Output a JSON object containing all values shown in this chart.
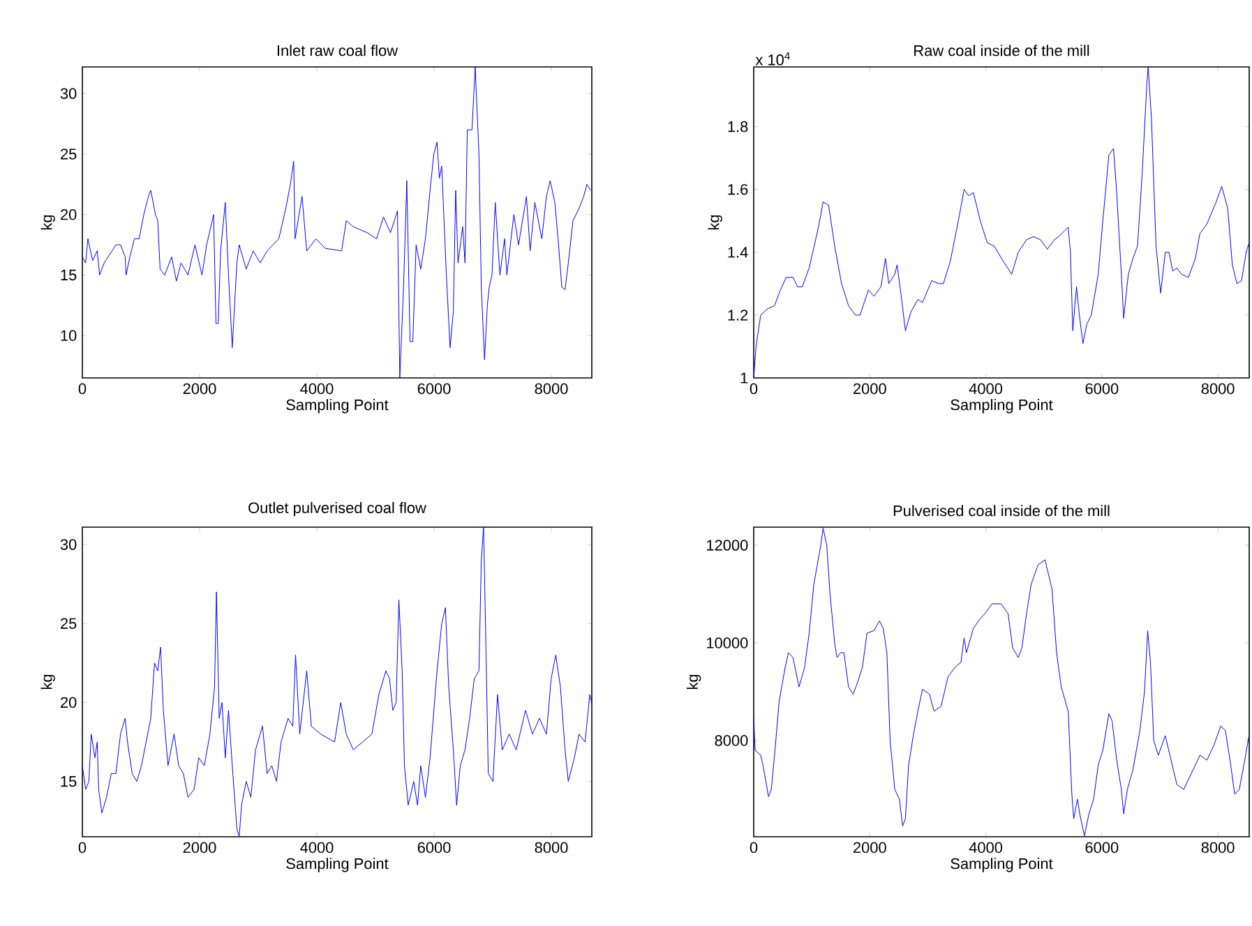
{
  "chart_data": [
    {
      "type": "line",
      "title": "Inlet raw coal flow",
      "xlabel": "Sampling Point",
      "ylabel": "kg",
      "color": "#0000ff",
      "marker": "none",
      "line_style": "solid",
      "xlim": [
        0,
        8690
      ],
      "ylim": [
        6.5,
        32.2
      ],
      "xticks": [
        0,
        2000,
        4000,
        6000,
        8000
      ],
      "yticks": [
        10,
        15,
        20,
        25,
        30
      ],
      "x": [
        0,
        56,
        95,
        175,
        254,
        294,
        373,
        572,
        651,
        730,
        746,
        810,
        889,
        969,
        1048,
        1127,
        1167,
        1247,
        1286,
        1326,
        1405,
        1524,
        1604,
        1683,
        1802,
        1921,
        2041,
        2120,
        2239,
        2279,
        2318,
        2358,
        2438,
        2493,
        2557,
        2636,
        2676,
        2795,
        2914,
        3033,
        3152,
        3351,
        3470,
        3549,
        3605,
        3629,
        3748,
        3827,
        3986,
        4145,
        4423,
        4502,
        4621,
        4859,
        5018,
        5137,
        5256,
        5375,
        5415,
        5479,
        5534,
        5590,
        5637,
        5693,
        5772,
        5852,
        5931,
        5995,
        6050,
        6090,
        6130,
        6209,
        6273,
        6328,
        6368,
        6408,
        6487,
        6527,
        6566,
        6646,
        6701,
        6765,
        6805,
        6860,
        6908,
        6940,
        6987,
        7043,
        7122,
        7202,
        7241,
        7360,
        7440,
        7575,
        7638,
        7718,
        7837,
        7916,
        7980,
        8059,
        8115,
        8178,
        8234,
        8289,
        8369,
        8472,
        8551,
        8607,
        8670
      ],
      "values": [
        16.5,
        16,
        18,
        16.2,
        17,
        15,
        16,
        17.5,
        17.5,
        16.5,
        15,
        16.5,
        18,
        18,
        20,
        21.5,
        22,
        20,
        19.5,
        15.5,
        15,
        16.5,
        14.5,
        16,
        15,
        17.5,
        15,
        17.5,
        20,
        11,
        11,
        17,
        21,
        15,
        9,
        16,
        17.5,
        15.5,
        17,
        16,
        17,
        18,
        20.5,
        22.5,
        24.4,
        18,
        21.5,
        17,
        18,
        17.2,
        17,
        19.5,
        19,
        18.5,
        18,
        19.8,
        18.5,
        20.3,
        6.5,
        14,
        22.8,
        9.5,
        9.5,
        17.5,
        15.5,
        18,
        22,
        25,
        26,
        23,
        24,
        15,
        9,
        12,
        22,
        16,
        19,
        16,
        27,
        27,
        32.2,
        25,
        14,
        8,
        12.5,
        14,
        15,
        21,
        15,
        18,
        15,
        20,
        17.5,
        21.5,
        17,
        21,
        18,
        21.5,
        22.8,
        21,
        18,
        14,
        13.8,
        16,
        19.5,
        20.5,
        21.5,
        22.5,
        22
      ]
    },
    {
      "type": "line",
      "title": "Raw coal inside of the mill",
      "xlabel": "Sampling Point",
      "ylabel": "kg",
      "annotations": [
        "x 10$^{4}$"
      ],
      "color": "#0000ff",
      "marker": "none",
      "line_style": "solid",
      "xlim": [
        0,
        8540
      ],
      "ylim": [
        1.0,
        1.99
      ],
      "xticks": [
        0,
        2000,
        4000,
        6000,
        8000
      ],
      "yticks": [
        1,
        1.2,
        1.4,
        1.6,
        1.8
      ],
      "x": [
        0,
        40,
        120,
        239,
        359,
        438,
        558,
        677,
        757,
        837,
        956,
        1116,
        1196,
        1291,
        1395,
        1514,
        1634,
        1753,
        1833,
        1977,
        2072,
        2192,
        2271,
        2327,
        2431,
        2471,
        2550,
        2614,
        2710,
        2829,
        2909,
        3068,
        3188,
        3268,
        3387,
        3547,
        3626,
        3706,
        3786,
        3905,
        4025,
        4144,
        4304,
        4447,
        4559,
        4702,
        4822,
        4941,
        5061,
        5181,
        5260,
        5420,
        5459,
        5499,
        5563,
        5619,
        5675,
        5738,
        5818,
        5938,
        6017,
        6121,
        6201,
        6256,
        6336,
        6376,
        6456,
        6535,
        6615,
        6695,
        6774,
        6798,
        6854,
        6934,
        7014,
        7093,
        7157,
        7221,
        7293,
        7372,
        7492,
        7611,
        7691,
        7811,
        7970,
        8066,
        8169,
        8249,
        8329,
        8408,
        8488,
        8536
      ],
      "values": [
        1.0,
        1.1,
        1.2,
        1.22,
        1.23,
        1.27,
        1.32,
        1.32,
        1.29,
        1.29,
        1.35,
        1.48,
        1.56,
        1.55,
        1.42,
        1.3,
        1.23,
        1.2,
        1.2,
        1.28,
        1.26,
        1.29,
        1.38,
        1.3,
        1.33,
        1.36,
        1.25,
        1.15,
        1.21,
        1.25,
        1.24,
        1.31,
        1.3,
        1.3,
        1.37,
        1.52,
        1.6,
        1.58,
        1.59,
        1.5,
        1.43,
        1.42,
        1.37,
        1.33,
        1.4,
        1.44,
        1.45,
        1.44,
        1.41,
        1.44,
        1.45,
        1.48,
        1.4,
        1.15,
        1.29,
        1.19,
        1.11,
        1.17,
        1.2,
        1.33,
        1.5,
        1.71,
        1.73,
        1.59,
        1.33,
        1.19,
        1.33,
        1.38,
        1.42,
        1.65,
        1.93,
        1.99,
        1.83,
        1.42,
        1.27,
        1.4,
        1.4,
        1.34,
        1.35,
        1.33,
        1.32,
        1.38,
        1.46,
        1.49,
        1.56,
        1.61,
        1.54,
        1.36,
        1.3,
        1.31,
        1.4,
        1.43
      ]
    },
    {
      "type": "line",
      "title": "Outlet pulverised coal flow",
      "xlabel": "Sampling Point",
      "ylabel": "kg",
      "color": "#0000ff",
      "marker": "none",
      "line_style": "solid",
      "xlim": [
        0,
        8690
      ],
      "ylim": [
        11.5,
        31.1
      ],
      "xticks": [
        0,
        2000,
        4000,
        6000,
        8000
      ],
      "yticks": [
        15,
        20,
        25,
        30
      ],
      "x": [
        0,
        56,
        111,
        151,
        214,
        254,
        278,
        333,
        413,
        492,
        572,
        651,
        730,
        770,
        850,
        929,
        1008,
        1088,
        1167,
        1231,
        1286,
        1334,
        1382,
        1461,
        1564,
        1644,
        1723,
        1802,
        1906,
        1985,
        2080,
        2176,
        2255,
        2287,
        2334,
        2382,
        2438,
        2493,
        2557,
        2636,
        2676,
        2715,
        2795,
        2874,
        2954,
        3073,
        3152,
        3232,
        3311,
        3390,
        3509,
        3589,
        3637,
        3708,
        3827,
        3906,
        4065,
        4303,
        4407,
        4502,
        4621,
        4780,
        4939,
        5058,
        5177,
        5240,
        5296,
        5352,
        5399,
        5455,
        5494,
        5558,
        5653,
        5717,
        5772,
        5852,
        5931,
        6050,
        6130,
        6193,
        6249,
        6328,
        6384,
        6447,
        6527,
        6606,
        6685,
        6765,
        6805,
        6844,
        6884,
        6924,
        7003,
        7082,
        7162,
        7281,
        7400,
        7559,
        7678,
        7797,
        7916,
        7996,
        8075,
        8154,
        8234,
        8289,
        8393,
        8472,
        8575,
        8655,
        8686
      ],
      "values": [
        16,
        14.5,
        15,
        18,
        16.5,
        17.5,
        14.5,
        13,
        14,
        15.5,
        15.5,
        18,
        19,
        17.5,
        15.5,
        15,
        16,
        17.5,
        19,
        22.5,
        22,
        23.5,
        19.5,
        16,
        18,
        16,
        15.5,
        14,
        14.5,
        16.5,
        16,
        18,
        21,
        27,
        19,
        20,
        16.5,
        19.5,
        16,
        12,
        11.5,
        13.5,
        15,
        14,
        17,
        18.5,
        15.5,
        16,
        15,
        17.5,
        19,
        18.5,
        23,
        18,
        22,
        18.5,
        18,
        17.5,
        20,
        18,
        17,
        17.5,
        18,
        20.5,
        22,
        21.5,
        19.5,
        20,
        26.5,
        22,
        16,
        13.5,
        15,
        13.5,
        16,
        14,
        16.5,
        22,
        25,
        26,
        21,
        17,
        13.5,
        16,
        17,
        19,
        21.5,
        22,
        29,
        31.1,
        23.5,
        15.5,
        15,
        20.5,
        17,
        18,
        17,
        19.5,
        18,
        19,
        18,
        21.5,
        23,
        21,
        17,
        15,
        16.5,
        18,
        17.5,
        20.5,
        20
      ]
    },
    {
      "type": "line",
      "title": "Pulverised coal inside of the mill",
      "xlabel": "Sampling Point",
      "ylabel": "kg",
      "color": "#0000ff",
      "marker": "none",
      "line_style": "solid",
      "xlim": [
        0,
        8540
      ],
      "ylim": [
        6030,
        12370
      ],
      "xticks": [
        0,
        2000,
        4000,
        6000,
        8000
      ],
      "yticks": [
        8000,
        10000,
        12000
      ],
      "x": [
        0,
        24,
        120,
        159,
        255,
        303,
        359,
        438,
        542,
        598,
        677,
        781,
        877,
        956,
        1036,
        1156,
        1196,
        1259,
        1315,
        1395,
        1435,
        1498,
        1554,
        1634,
        1714,
        1793,
        1873,
        1953,
        2072,
        2168,
        2232,
        2295,
        2351,
        2431,
        2511,
        2566,
        2614,
        2670,
        2750,
        2829,
        2909,
        3029,
        3108,
        3228,
        3348,
        3467,
        3571,
        3626,
        3666,
        3786,
        3905,
        3985,
        4105,
        4264,
        4384,
        4463,
        4559,
        4623,
        4702,
        4782,
        4902,
        5021,
        5141,
        5220,
        5300,
        5420,
        5483,
        5515,
        5579,
        5619,
        5699,
        5778,
        5858,
        5938,
        6017,
        6121,
        6177,
        6256,
        6336,
        6376,
        6440,
        6535,
        6655,
        6735,
        6790,
        6838,
        6894,
        6974,
        7093,
        7173,
        7293,
        7412,
        7532,
        7691,
        7811,
        7930,
        8050,
        8129,
        8209,
        8289,
        8369,
        8448,
        8536
      ],
      "values": [
        8500,
        7800,
        7700,
        7500,
        6850,
        7000,
        7700,
        8800,
        9500,
        9800,
        9700,
        9100,
        9500,
        10200,
        11200,
        12000,
        12350,
        12000,
        11000,
        10000,
        9700,
        9800,
        9800,
        9100,
        8950,
        9200,
        9500,
        10200,
        10250,
        10450,
        10300,
        9800,
        8000,
        7000,
        6800,
        6250,
        6400,
        7500,
        8100,
        8600,
        9050,
        8950,
        8600,
        8700,
        9300,
        9500,
        9600,
        10100,
        9800,
        10300,
        10500,
        10600,
        10800,
        10800,
        10600,
        9900,
        9700,
        9900,
        10600,
        11200,
        11600,
        11700,
        11100,
        9800,
        9100,
        8600,
        6900,
        6400,
        6800,
        6500,
        6050,
        6500,
        6800,
        7500,
        7800,
        8550,
        8400,
        7600,
        7000,
        6500,
        7000,
        7400,
        8200,
        9000,
        10250,
        9600,
        8000,
        7700,
        8100,
        7700,
        7100,
        7000,
        7300,
        7700,
        7600,
        7900,
        8300,
        8200,
        7600,
        6900,
        7000,
        7500,
        8100
      ]
    }
  ]
}
